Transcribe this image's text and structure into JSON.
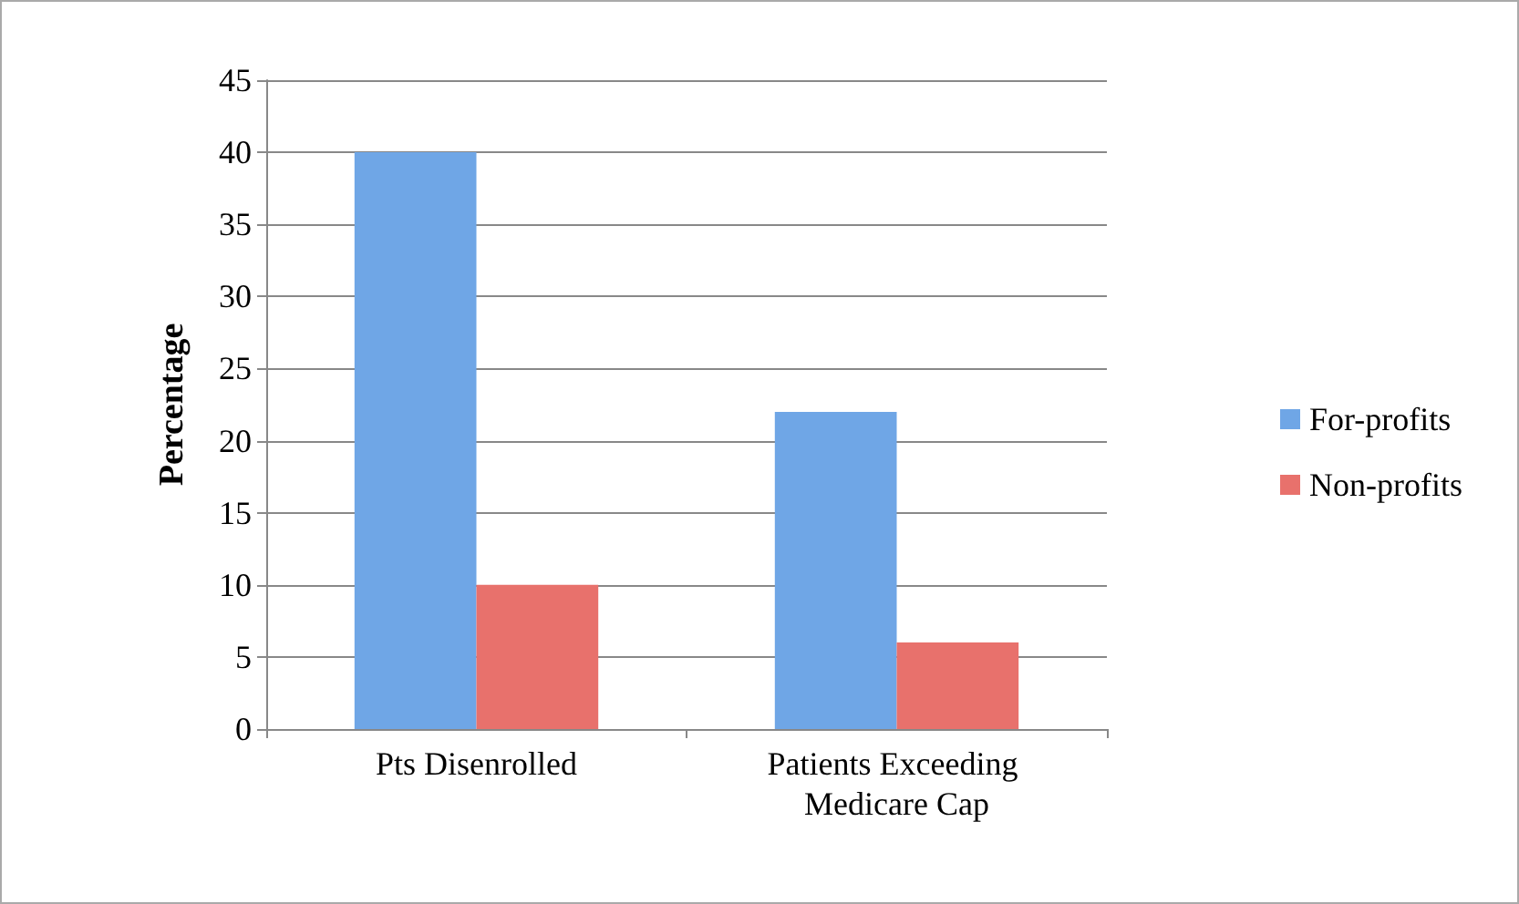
{
  "chart_data": {
    "type": "bar",
    "ylabel": "Percentage",
    "categories": [
      "Pts Disenrolled",
      "Patients Exceeding Medicare Cap"
    ],
    "series": [
      {
        "name": "For-profits",
        "color": "#6fa6e6",
        "values": [
          40,
          22
        ]
      },
      {
        "name": "Non-profits",
        "color": "#e8716c",
        "values": [
          10,
          6
        ]
      }
    ],
    "ylim": [
      0,
      45
    ],
    "yticks": [
      0,
      5,
      10,
      15,
      20,
      25,
      30,
      35,
      40,
      45
    ],
    "grid": "y",
    "legend": "right"
  }
}
